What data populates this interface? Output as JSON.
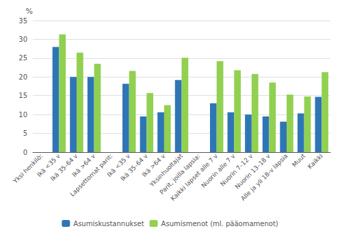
{
  "chart_data": {
    "type": "bar",
    "ylabel": "%",
    "categories": [
      "Yksi henkilö:",
      "Ikä <35 v",
      "Ikä 35–64 v",
      "Ikä >64 v",
      "Lapsettomat parit:",
      "Ikä <35 v",
      "Ikä 35–64 v",
      "Ikä >64 v",
      "Yksinhuoltajat",
      "Parit, joilla lapsia:",
      "Kaikki lapset alle 7 v",
      "Nuorin alle 7 v",
      "Nuorin 7–12 v",
      "Nuorin 13–18 v",
      "Alle ja yli 18-v lapsia",
      "Muut",
      "Kaikki"
    ],
    "series": [
      {
        "name": "Asumiskustannukset",
        "color": "#2e75b6",
        "values": [
          null,
          28.0,
          20.0,
          20.0,
          null,
          18.2,
          9.5,
          10.6,
          19.2,
          null,
          13.0,
          10.6,
          10.0,
          9.5,
          8.1,
          10.3,
          14.7
        ]
      },
      {
        "name": "Asumismenot (ml. pääomamenot)",
        "color": "#92d050",
        "values": [
          null,
          31.3,
          26.5,
          23.5,
          null,
          21.6,
          15.7,
          12.5,
          25.1,
          null,
          24.2,
          21.8,
          20.8,
          18.5,
          15.3,
          14.8,
          21.3
        ]
      }
    ],
    "ylim": [
      0,
      35
    ],
    "yticks": [
      0,
      5,
      10,
      15,
      20,
      25,
      30,
      35
    ],
    "grid": true,
    "legend": "bottom"
  }
}
